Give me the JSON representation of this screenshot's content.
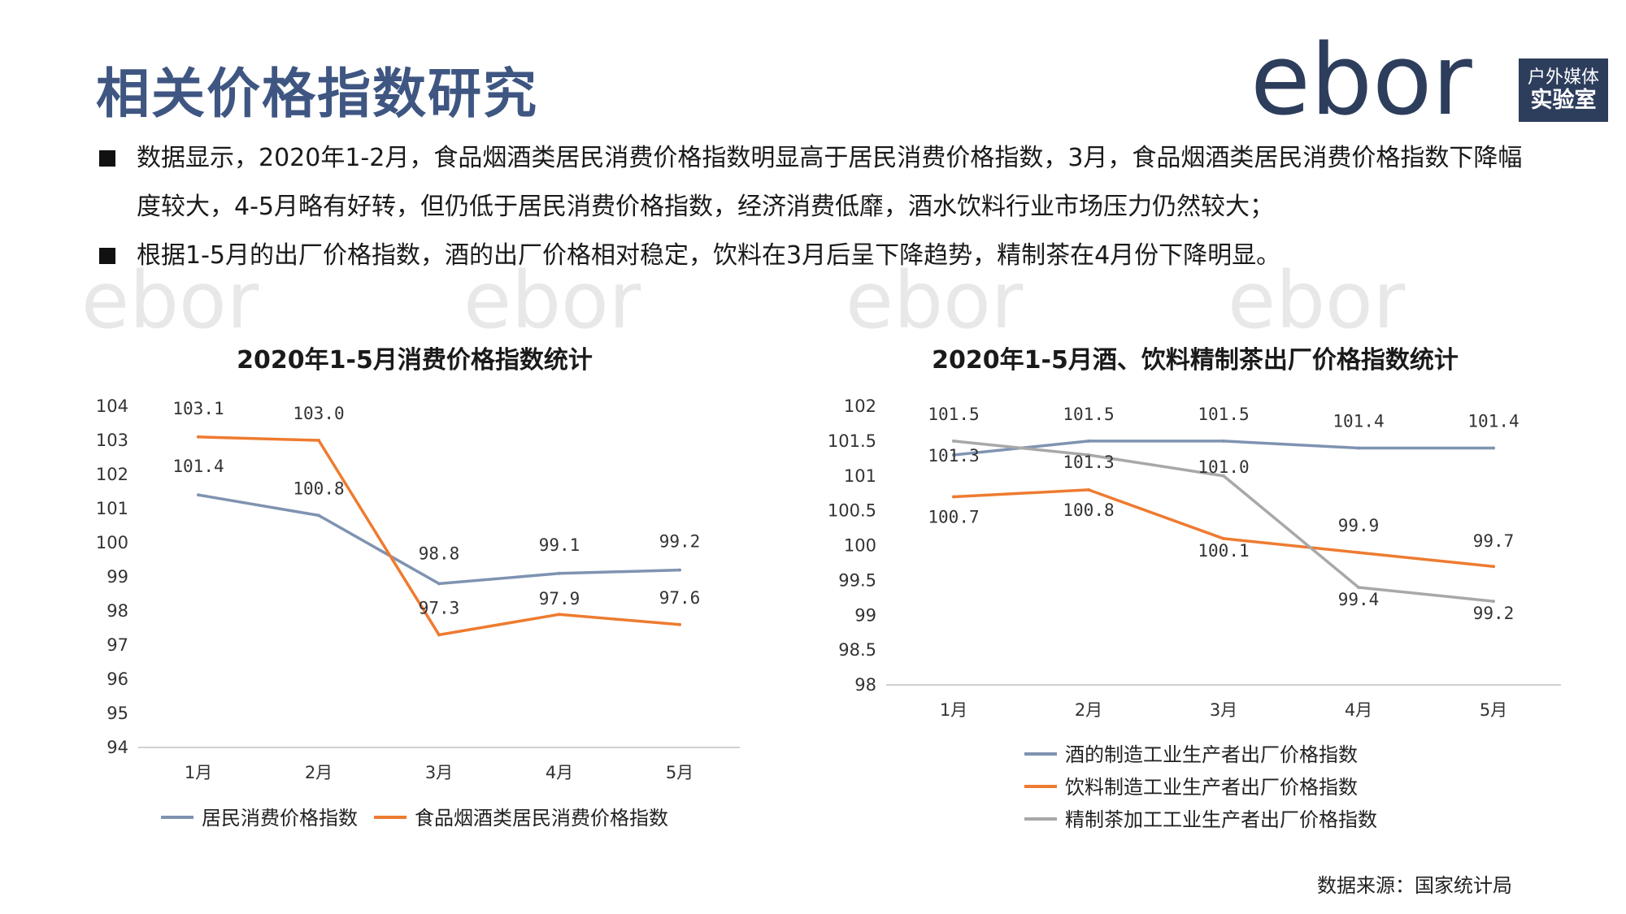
{
  "page": {
    "title": "相关价格指数研究",
    "logo": {
      "wordmark": "ebor",
      "box_line1": "户外媒体",
      "box_line2": "实验室"
    },
    "bullets": [
      "数据显示，2020年1-2月，食品烟酒类居民消费价格指数明显高于居民消费价格指数，3月，食品烟酒类居民消费价格指数下降幅度较大，4-5月略有好转，但仍低于居民消费价格指数，经济消费低靡，酒水饮料行业市场压力仍然较大；",
      "根据1-5月的出厂价格指数，酒的出厂价格相对稳定，饮料在3月后呈下降趋势，精制茶在4月份下降明显。"
    ],
    "source": "数据来源：国家统计局"
  },
  "colors": {
    "title": "#3f5682",
    "blue": "#7f93b1",
    "orange": "#ee7b30",
    "gray": "#a8a8a8",
    "logo": "#2d3d5c"
  },
  "chart_data": [
    {
      "type": "line",
      "title": "2020年1-5月消费价格指数统计",
      "categories": [
        "1月",
        "2月",
        "3月",
        "4月",
        "5月"
      ],
      "ylim": [
        94,
        104
      ],
      "yticks": [
        94,
        95,
        96,
        97,
        98,
        99,
        100,
        101,
        102,
        103,
        104
      ],
      "series": [
        {
          "name": "居民消费价格指数",
          "color": "#7f93b1",
          "values": [
            101.4,
            100.8,
            98.8,
            99.1,
            99.2
          ]
        },
        {
          "name": "食品烟酒类居民消费价格指数",
          "color": "#ee7b30",
          "values": [
            103.1,
            103.0,
            97.3,
            97.9,
            97.6
          ]
        }
      ],
      "legend": "bottom"
    },
    {
      "type": "line",
      "title": "2020年1-5月酒、饮料精制茶出厂价格指数统计",
      "categories": [
        "1月",
        "2月",
        "3月",
        "4月",
        "5月"
      ],
      "ylim": [
        98,
        102
      ],
      "yticks": [
        98,
        98.5,
        99,
        99.5,
        100,
        100.5,
        101,
        101.5,
        102
      ],
      "series": [
        {
          "name": "酒的制造工业生产者出厂价格指数",
          "color": "#7f93b1",
          "values": [
            101.3,
            101.5,
            101.5,
            101.4,
            101.4
          ]
        },
        {
          "name": "饮料制造工业生产者出厂价格指数",
          "color": "#ee7b30",
          "values": [
            100.7,
            100.8,
            100.1,
            99.9,
            99.7
          ]
        },
        {
          "name": "精制茶加工工业生产者出厂价格指数",
          "color": "#a8a8a8",
          "values": [
            101.5,
            101.3,
            101.0,
            99.4,
            99.2
          ]
        }
      ],
      "legend": "bottom"
    }
  ]
}
